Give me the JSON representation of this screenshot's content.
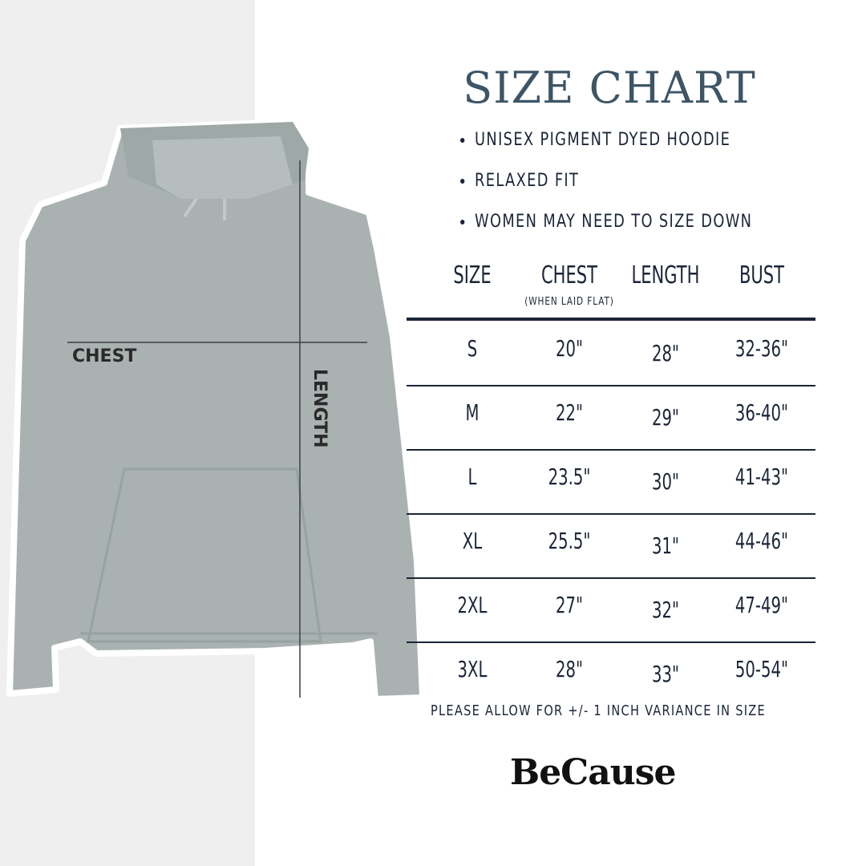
{
  "title": "SIZE CHART",
  "bullets": [
    "UNISEX PIGMENT DYED HOODIE",
    "RELAXED FIT",
    "WOMEN MAY NEED TO SIZE DOWN"
  ],
  "diagram": {
    "chest_label": "CHEST",
    "length_label": "LENGTH"
  },
  "table": {
    "headers": [
      "SIZE",
      "CHEST",
      "LENGTH",
      "BUST"
    ],
    "chest_note": "(WHEN LAID FLAT)",
    "rows": [
      [
        "S",
        "20\"",
        "28\"",
        "32-36\""
      ],
      [
        "M",
        "22\"",
        "29\"",
        "36-40\""
      ],
      [
        "L",
        "23.5\"",
        "30\"",
        "41-43\""
      ],
      [
        "XL",
        "25.5\"",
        "31\"",
        "44-46\""
      ],
      [
        "2XL",
        "27\"",
        "32\"",
        "47-49\""
      ],
      [
        "3XL",
        "28\"",
        "33\"",
        "50-54\""
      ]
    ]
  },
  "note": "PLEASE ALLOW FOR +/- 1 INCH VARIANCE IN SIZE",
  "brand": "BeCause",
  "colors": {
    "title": "#3d5566",
    "text": "#1b2538",
    "hoodie": "#a9b2b1",
    "panel": "#efefef"
  }
}
